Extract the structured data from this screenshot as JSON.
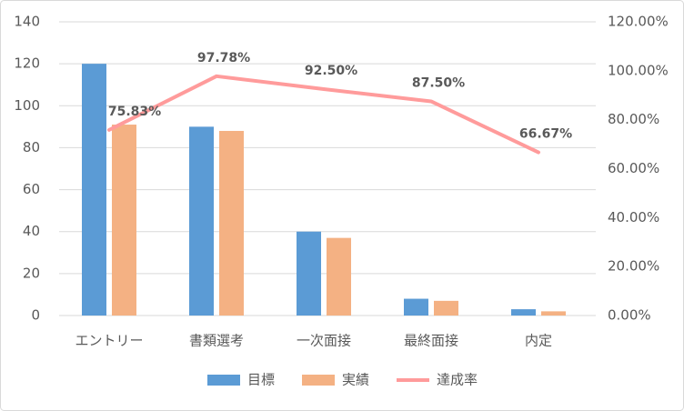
{
  "chart_data": {
    "type": "bar-line",
    "categories": [
      "エントリー",
      "書類選考",
      "一次面接",
      "最終面接",
      "内定"
    ],
    "series": [
      {
        "name": "目標",
        "color": "#5b9bd5",
        "type": "bar",
        "values": [
          120,
          90,
          40,
          8,
          3
        ]
      },
      {
        "name": "実績",
        "color": "#f4b183",
        "type": "bar",
        "values": [
          91,
          88,
          37,
          7,
          2
        ]
      },
      {
        "name": "達成率",
        "color": "#ff9b9b",
        "type": "line",
        "axis": "y2",
        "values": [
          75.83,
          97.78,
          92.5,
          87.5,
          66.67
        ],
        "value_labels": [
          "75.83%",
          "97.78%",
          "92.50%",
          "87.50%",
          "66.67%"
        ]
      }
    ],
    "ylim": [
      0,
      140
    ],
    "yticks": [
      0,
      20,
      40,
      60,
      80,
      100,
      120,
      140
    ],
    "y2lim": [
      0,
      120
    ],
    "y2ticks": [
      {
        "value": 0,
        "label": "0.00%"
      },
      {
        "value": 20,
        "label": "20.00%"
      },
      {
        "value": 40,
        "label": "40.00%"
      },
      {
        "value": 60,
        "label": "60.00%"
      },
      {
        "value": 80,
        "label": "80.00%"
      },
      {
        "value": 100,
        "label": "100.00%"
      },
      {
        "value": 120,
        "label": "120.00%"
      }
    ],
    "grid": true,
    "legend": "bottom"
  }
}
